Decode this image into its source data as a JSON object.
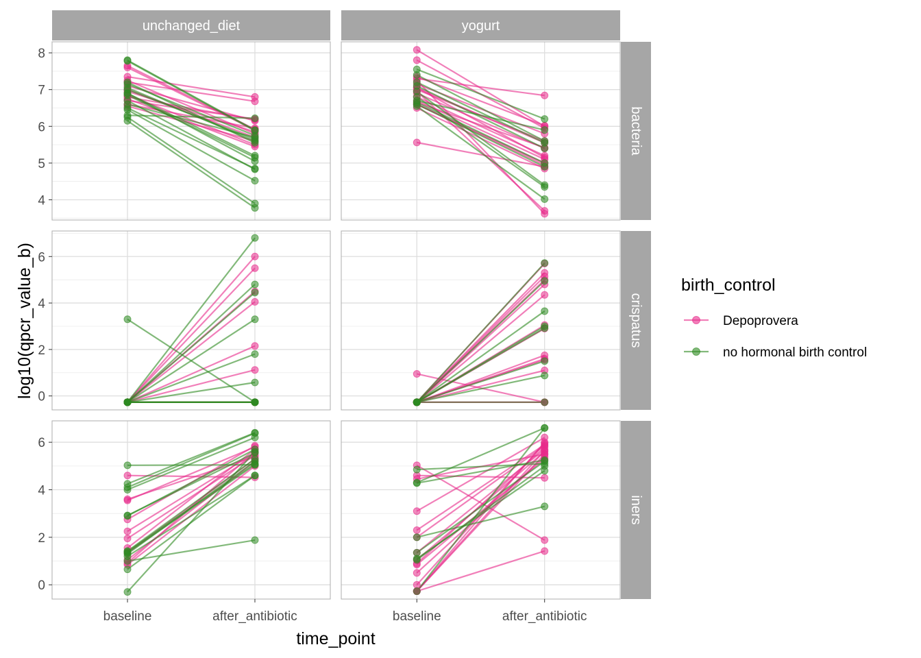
{
  "chart_data": {
    "type": "line",
    "x_label": "time_point",
    "y_label": "log10(qpcr_value_b)",
    "x_categories": [
      "baseline",
      "after_antibiotic"
    ],
    "facet_columns": [
      "unchanged_diet",
      "yogurt"
    ],
    "facet_rows": [
      "bacteria",
      "crispatus",
      "iners"
    ],
    "legend": {
      "title": "birth_control",
      "placement": "right",
      "entries": [
        {
          "label": "Depoprovera",
          "color": "#e7298a"
        },
        {
          "label": "no hormonal birth control",
          "color": "#2e8b22"
        }
      ]
    },
    "colors": {
      "Depoprovera": "#e7298a",
      "no hormonal birth control": "#2e8b22",
      "strip": "#a6a6a6",
      "grid": "#dedede",
      "panel_border": "#b3b3b3"
    },
    "rows": [
      {
        "name": "bacteria",
        "ylim": [
          3.45,
          8.3
        ],
        "yticks": [
          4,
          5,
          6,
          7,
          8
        ]
      },
      {
        "name": "crispatus",
        "ylim": [
          -0.6,
          7.1
        ],
        "yticks": [
          0,
          2,
          4,
          6
        ]
      },
      {
        "name": "iners",
        "ylim": [
          -0.6,
          6.9
        ],
        "yticks": [
          0,
          2,
          4,
          6
        ]
      }
    ],
    "panels": [
      {
        "row": "bacteria",
        "col": "unchanged_diet",
        "series": [
          {
            "group": "Depoprovera",
            "values": [
              [
                7.35,
                6.8
              ],
              [
                7.2,
                6.68
              ],
              [
                7.6,
                5.9
              ],
              [
                6.95,
                5.85
              ],
              [
                6.85,
                5.5
              ],
              [
                6.75,
                5.45
              ],
              [
                6.7,
                6.2
              ],
              [
                7.1,
                6.15
              ],
              [
                6.6,
                5.95
              ],
              [
                6.8,
                6.18
              ],
              [
                7.0,
                5.7
              ],
              [
                6.55,
                5.6
              ],
              [
                7.65,
                5.92
              ],
              [
                7.25,
                5.8
              ]
            ]
          },
          {
            "group": "no hormonal birth control",
            "values": [
              [
                7.8,
                5.9
              ],
              [
                7.15,
                5.75
              ],
              [
                7.05,
                5.6
              ],
              [
                6.9,
                5.2
              ],
              [
                6.5,
                4.85
              ],
              [
                6.25,
                3.9
              ],
              [
                6.15,
                3.78
              ],
              [
                6.45,
                4.52
              ],
              [
                6.9,
                5.05
              ],
              [
                6.7,
                4.83
              ],
              [
                7.0,
                5.65
              ],
              [
                6.6,
                5.7
              ],
              [
                7.2,
                5.55
              ],
              [
                6.3,
                6.22
              ],
              [
                6.85,
                5.15
              ],
              [
                7.78,
                5.88
              ]
            ]
          }
        ]
      },
      {
        "row": "bacteria",
        "col": "yogurt",
        "series": [
          {
            "group": "Depoprovera",
            "values": [
              [
                8.08,
                6.0
              ],
              [
                7.8,
                5.95
              ],
              [
                7.3,
                6.84
              ],
              [
                7.15,
                5.8
              ],
              [
                7.0,
                5.6
              ],
              [
                6.9,
                5.4
              ],
              [
                6.8,
                5.2
              ],
              [
                6.7,
                5.1
              ],
              [
                6.6,
                5.0
              ],
              [
                6.5,
                4.85
              ],
              [
                7.05,
                5.55
              ],
              [
                5.56,
                4.9
              ],
              [
                6.95,
                3.7
              ],
              [
                7.25,
                3.62
              ],
              [
                7.05,
                5.15
              ],
              [
                6.65,
                5.42
              ],
              [
                7.35,
                6.02
              ],
              [
                6.6,
                4.95
              ]
            ]
          },
          {
            "group": "no hormonal birth control",
            "values": [
              [
                7.55,
                6.2
              ],
              [
                7.4,
                5.6
              ],
              [
                7.2,
                5.55
              ],
              [
                6.95,
                4.4
              ],
              [
                6.8,
                4.35
              ],
              [
                6.7,
                5.9
              ],
              [
                6.55,
                4.02
              ],
              [
                6.65,
                5.0
              ],
              [
                6.6,
                4.9
              ],
              [
                7.1,
                5.4
              ]
            ]
          }
        ]
      },
      {
        "row": "crispatus",
        "col": "unchanged_diet",
        "series": [
          {
            "group": "Depoprovera",
            "values": [
              [
                -0.27,
                6.0
              ],
              [
                -0.27,
                5.5
              ],
              [
                -0.27,
                4.5
              ],
              [
                -0.27,
                4.05
              ],
              [
                -0.27,
                2.15
              ],
              [
                -0.27,
                1.12
              ],
              [
                -0.27,
                -0.27
              ],
              [
                -0.27,
                -0.27
              ],
              [
                -0.27,
                -0.27
              ],
              [
                -0.27,
                -0.27
              ]
            ]
          },
          {
            "group": "no hormonal birth control",
            "values": [
              [
                -0.27,
                6.8
              ],
              [
                -0.27,
                4.8
              ],
              [
                -0.27,
                4.45
              ],
              [
                -0.27,
                3.3
              ],
              [
                -0.27,
                1.8
              ],
              [
                -0.27,
                0.58
              ],
              [
                3.3,
                -0.27
              ],
              [
                -0.27,
                -0.27
              ],
              [
                -0.27,
                -0.27
              ],
              [
                -0.27,
                -0.27
              ],
              [
                -0.27,
                -0.27
              ],
              [
                -0.27,
                -0.27
              ]
            ]
          }
        ]
      },
      {
        "row": "crispatus",
        "col": "yogurt",
        "series": [
          {
            "group": "Depoprovera",
            "values": [
              [
                -0.27,
                5.7
              ],
              [
                -0.27,
                5.3
              ],
              [
                -0.27,
                5.15
              ],
              [
                -0.27,
                5.0
              ],
              [
                -0.27,
                4.8
              ],
              [
                -0.27,
                4.35
              ],
              [
                -0.27,
                3.05
              ],
              [
                -0.27,
                1.75
              ],
              [
                -0.27,
                1.6
              ],
              [
                -0.27,
                1.55
              ],
              [
                -0.27,
                1.1
              ],
              [
                0.95,
                -0.27
              ],
              [
                -0.27,
                -0.27
              ],
              [
                -0.27,
                -0.27
              ],
              [
                -0.27,
                2.9
              ]
            ]
          },
          {
            "group": "no hormonal birth control",
            "values": [
              [
                -0.27,
                5.72
              ],
              [
                -0.27,
                4.95
              ],
              [
                -0.27,
                3.65
              ],
              [
                -0.27,
                3.0
              ],
              [
                -0.27,
                2.92
              ],
              [
                -0.27,
                1.5
              ],
              [
                -0.27,
                0.88
              ],
              [
                -0.27,
                -0.27
              ]
            ]
          }
        ]
      },
      {
        "row": "iners",
        "col": "unchanged_diet",
        "series": [
          {
            "group": "Depoprovera",
            "values": [
              [
                4.6,
                4.52
              ],
              [
                3.55,
                5.8
              ],
              [
                2.75,
                5.85
              ],
              [
                2.25,
                5.55
              ],
              [
                1.95,
                5.45
              ],
              [
                1.35,
                5.3
              ],
              [
                1.05,
                5.2
              ],
              [
                0.92,
                5.6
              ],
              [
                0.85,
                5.0
              ],
              [
                1.55,
                5.7
              ],
              [
                3.6,
                5.4
              ]
            ]
          },
          {
            "group": "no hormonal birth control",
            "values": [
              [
                5.03,
                5.05
              ],
              [
                4.25,
                6.4
              ],
              [
                4.1,
                6.38
              ],
              [
                4.0,
                6.2
              ],
              [
                2.9,
                5.7
              ],
              [
                2.92,
                5.55
              ],
              [
                1.4,
                5.1
              ],
              [
                1.3,
                5.2
              ],
              [
                1.2,
                4.6
              ],
              [
                1.0,
                1.88
              ],
              [
                0.65,
                4.6
              ],
              [
                -0.3,
                5.6
              ],
              [
                1.35,
                5.05
              ],
              [
                1.42,
                5.3
              ]
            ]
          }
        ]
      },
      {
        "row": "iners",
        "col": "yogurt",
        "series": [
          {
            "group": "Depoprovera",
            "values": [
              [
                5.03,
                1.88
              ],
              [
                4.6,
                4.5
              ],
              [
                4.45,
                5.5
              ],
              [
                3.1,
                6.2
              ],
              [
                2.3,
                5.9
              ],
              [
                2.0,
                5.85
              ],
              [
                1.35,
                5.7
              ],
              [
                1.05,
                5.6
              ],
              [
                0.9,
                5.8
              ],
              [
                0.5,
                5.4
              ],
              [
                0.0,
                5.95
              ],
              [
                -0.27,
                1.42
              ],
              [
                -0.27,
                5.65
              ],
              [
                -0.27,
                5.5
              ],
              [
                -0.27,
                6.0
              ],
              [
                0.85,
                5.3
              ]
            ]
          },
          {
            "group": "no hormonal birth control",
            "values": [
              [
                4.85,
                5.1
              ],
              [
                4.3,
                6.6
              ],
              [
                4.28,
                5.25
              ],
              [
                2.0,
                3.3
              ],
              [
                1.35,
                5.2
              ],
              [
                1.1,
                4.8
              ],
              [
                1.05,
                5.0
              ],
              [
                -0.27,
                6.6
              ]
            ]
          }
        ]
      }
    ]
  }
}
